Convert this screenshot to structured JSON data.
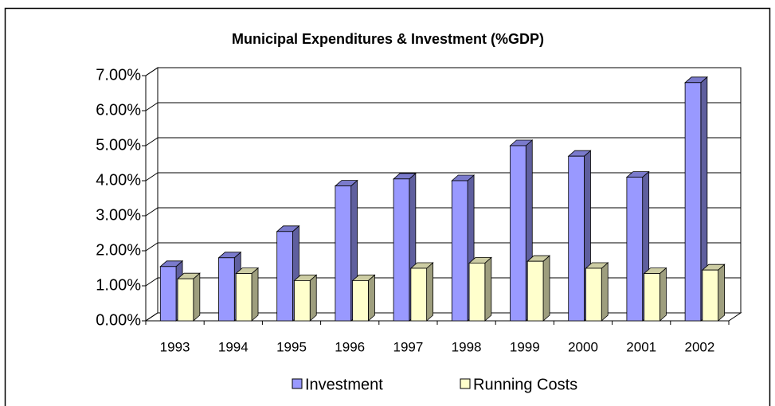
{
  "chart_data": {
    "type": "bar3d",
    "title": "Municipal Expenditures & Investment (%GDP)",
    "categories": [
      "1993",
      "1994",
      "1995",
      "1996",
      "1997",
      "1998",
      "1999",
      "2000",
      "2001",
      "2002"
    ],
    "series": [
      {
        "name": "Investment",
        "color": "#9999ff",
        "values": [
          1.55,
          1.8,
          2.55,
          3.85,
          4.05,
          4.0,
          5.0,
          4.7,
          4.1,
          6.8
        ]
      },
      {
        "name": "Running Costs",
        "color": "#ffffcc",
        "values": [
          1.2,
          1.35,
          1.15,
          1.15,
          1.5,
          1.65,
          1.7,
          1.5,
          1.35,
          1.45
        ]
      }
    ],
    "ylim": [
      0,
      7
    ],
    "yticks": [
      {
        "value": 0,
        "label": "0.00%"
      },
      {
        "value": 1,
        "label": "1.00%"
      },
      {
        "value": 2,
        "label": "2.00%"
      },
      {
        "value": 3,
        "label": "3.00%"
      },
      {
        "value": 4,
        "label": "4.00%"
      },
      {
        "value": 5,
        "label": "5.00%"
      },
      {
        "value": 6,
        "label": "6.00%"
      },
      {
        "value": 7,
        "label": "7.00%"
      }
    ],
    "grid": true,
    "legend": "bottom"
  }
}
